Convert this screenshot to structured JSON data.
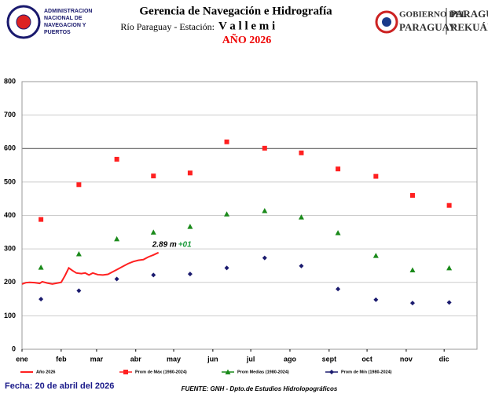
{
  "header": {
    "agency": [
      "Administracion",
      "Nacional de",
      "Navegacion y",
      "Puertos"
    ],
    "title": "Gerencia de Navegación e Hidrografía",
    "subtitle": "Río Paraguay  -  Estación:",
    "station": "V a l l e m i",
    "year": "AÑO 2026",
    "gov": [
      "GOBIERNO DEL",
      "PARAGUAY"
    ],
    "gov2": [
      "PARAGUÁI",
      "REKUÁI"
    ]
  },
  "footer": {
    "date": "Fecha: 20 de abril del 2026",
    "source": "FUENTE: GNH - Dpto.de Estudios Hidrolopográficos"
  },
  "chart_data": {
    "type": "line",
    "xlim": [
      0,
      360
    ],
    "xticks": [
      {
        "value": 0,
        "label": "ene"
      },
      {
        "value": 31,
        "label": "feb"
      },
      {
        "value": 59,
        "label": "mar"
      },
      {
        "value": 90,
        "label": "abr"
      },
      {
        "value": 120,
        "label": "may"
      },
      {
        "value": 151,
        "label": "jun"
      },
      {
        "value": 181,
        "label": "jul"
      },
      {
        "value": 212,
        "label": "ago"
      },
      {
        "value": 243,
        "label": "sept"
      },
      {
        "value": 273,
        "label": "oct"
      },
      {
        "value": 304,
        "label": "nov"
      },
      {
        "value": 334,
        "label": "dic"
      }
    ],
    "ylim": [
      0,
      800
    ],
    "yticks": [
      0,
      100,
      200,
      300,
      400,
      500,
      600,
      700,
      800
    ],
    "grid": true,
    "series": [
      {
        "name": "Año 2026",
        "color": "#ff2020",
        "marker": "line",
        "x": [
          0,
          3,
          6,
          10,
          14,
          16,
          20,
          24,
          28,
          31,
          34,
          37,
          40,
          43,
          47,
          50,
          53,
          56,
          60,
          64,
          68,
          72,
          76,
          80,
          84,
          88,
          92,
          96,
          100,
          104,
          108
        ],
        "values": [
          195,
          199,
          200,
          199,
          197,
          202,
          198,
          195,
          198,
          200,
          220,
          243,
          235,
          228,
          226,
          228,
          222,
          228,
          223,
          222,
          224,
          232,
          240,
          248,
          256,
          262,
          266,
          268,
          276,
          282,
          289
        ]
      },
      {
        "name": "Prom de Máx (1980-2024)",
        "color": "#ff2020",
        "marker": "square",
        "x": [
          15,
          45,
          75,
          104,
          133,
          162,
          192,
          221,
          250,
          280,
          309,
          338
        ],
        "values": [
          388,
          492,
          568,
          518,
          527,
          620,
          601,
          587,
          539,
          517,
          460,
          430
        ]
      },
      {
        "name": "Prom Medias (1980-2024)",
        "color": "#1a8a1a",
        "marker": "triangle",
        "x": [
          15,
          45,
          75,
          104,
          133,
          162,
          192,
          221,
          250,
          280,
          309,
          338
        ],
        "values": [
          245,
          285,
          330,
          350,
          367,
          404,
          414,
          395,
          348,
          280,
          237,
          243
        ]
      },
      {
        "name": "Prom de Mín  (1980-2024)",
        "color": "#1a1a6e",
        "marker": "diamond",
        "x": [
          15,
          45,
          75,
          104,
          133,
          162,
          192,
          221,
          250,
          280,
          309,
          338
        ],
        "values": [
          150,
          175,
          210,
          222,
          225,
          243,
          273,
          249,
          180,
          148,
          138,
          140
        ]
      }
    ],
    "annotations": [
      "2.89 m",
      "+01"
    ]
  }
}
